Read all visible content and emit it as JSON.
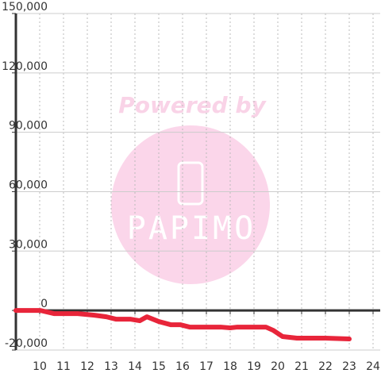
{
  "chart_data": {
    "type": "line",
    "watermark": "Powered by",
    "watermark_logo": "PAPIMO",
    "x": [
      9.0,
      10.03,
      10.6,
      11.6,
      12.3,
      12.8,
      13.2,
      13.8,
      14.2,
      14.5,
      15.0,
      15.5,
      15.9,
      16.3,
      17.6,
      18.0,
      18.3,
      19.5,
      19.8,
      20.2,
      20.8,
      22.0,
      23.0
    ],
    "series": [
      {
        "color": "#e8253a",
        "values": [
          0,
          0,
          -1600,
          -1600,
          -2400,
          -3200,
          -4400,
          -4400,
          -5200,
          -3200,
          -5600,
          -7200,
          -7200,
          -8400,
          -8400,
          -8800,
          -8400,
          -8400,
          -10000,
          -13200,
          -14000,
          -14000,
          -14400
        ]
      }
    ],
    "xlim": [
      9,
      24.3
    ],
    "xticks": [
      10,
      11,
      12,
      13,
      14,
      15,
      16,
      17,
      18,
      19,
      20,
      21,
      22,
      23,
      24
    ],
    "ylim": [
      -20000,
      150000
    ],
    "yticks": [
      {
        "value": -20000,
        "label": "-20,000"
      },
      0,
      {
        "value": 30000,
        "label": "30,000"
      },
      {
        "value": 60000,
        "label": "60,000"
      },
      {
        "value": 90000,
        "label": "90,000"
      },
      {
        "value": 120000,
        "label": "120,000"
      },
      {
        "value": 150000,
        "label": "150,000"
      }
    ],
    "grid": true
  }
}
